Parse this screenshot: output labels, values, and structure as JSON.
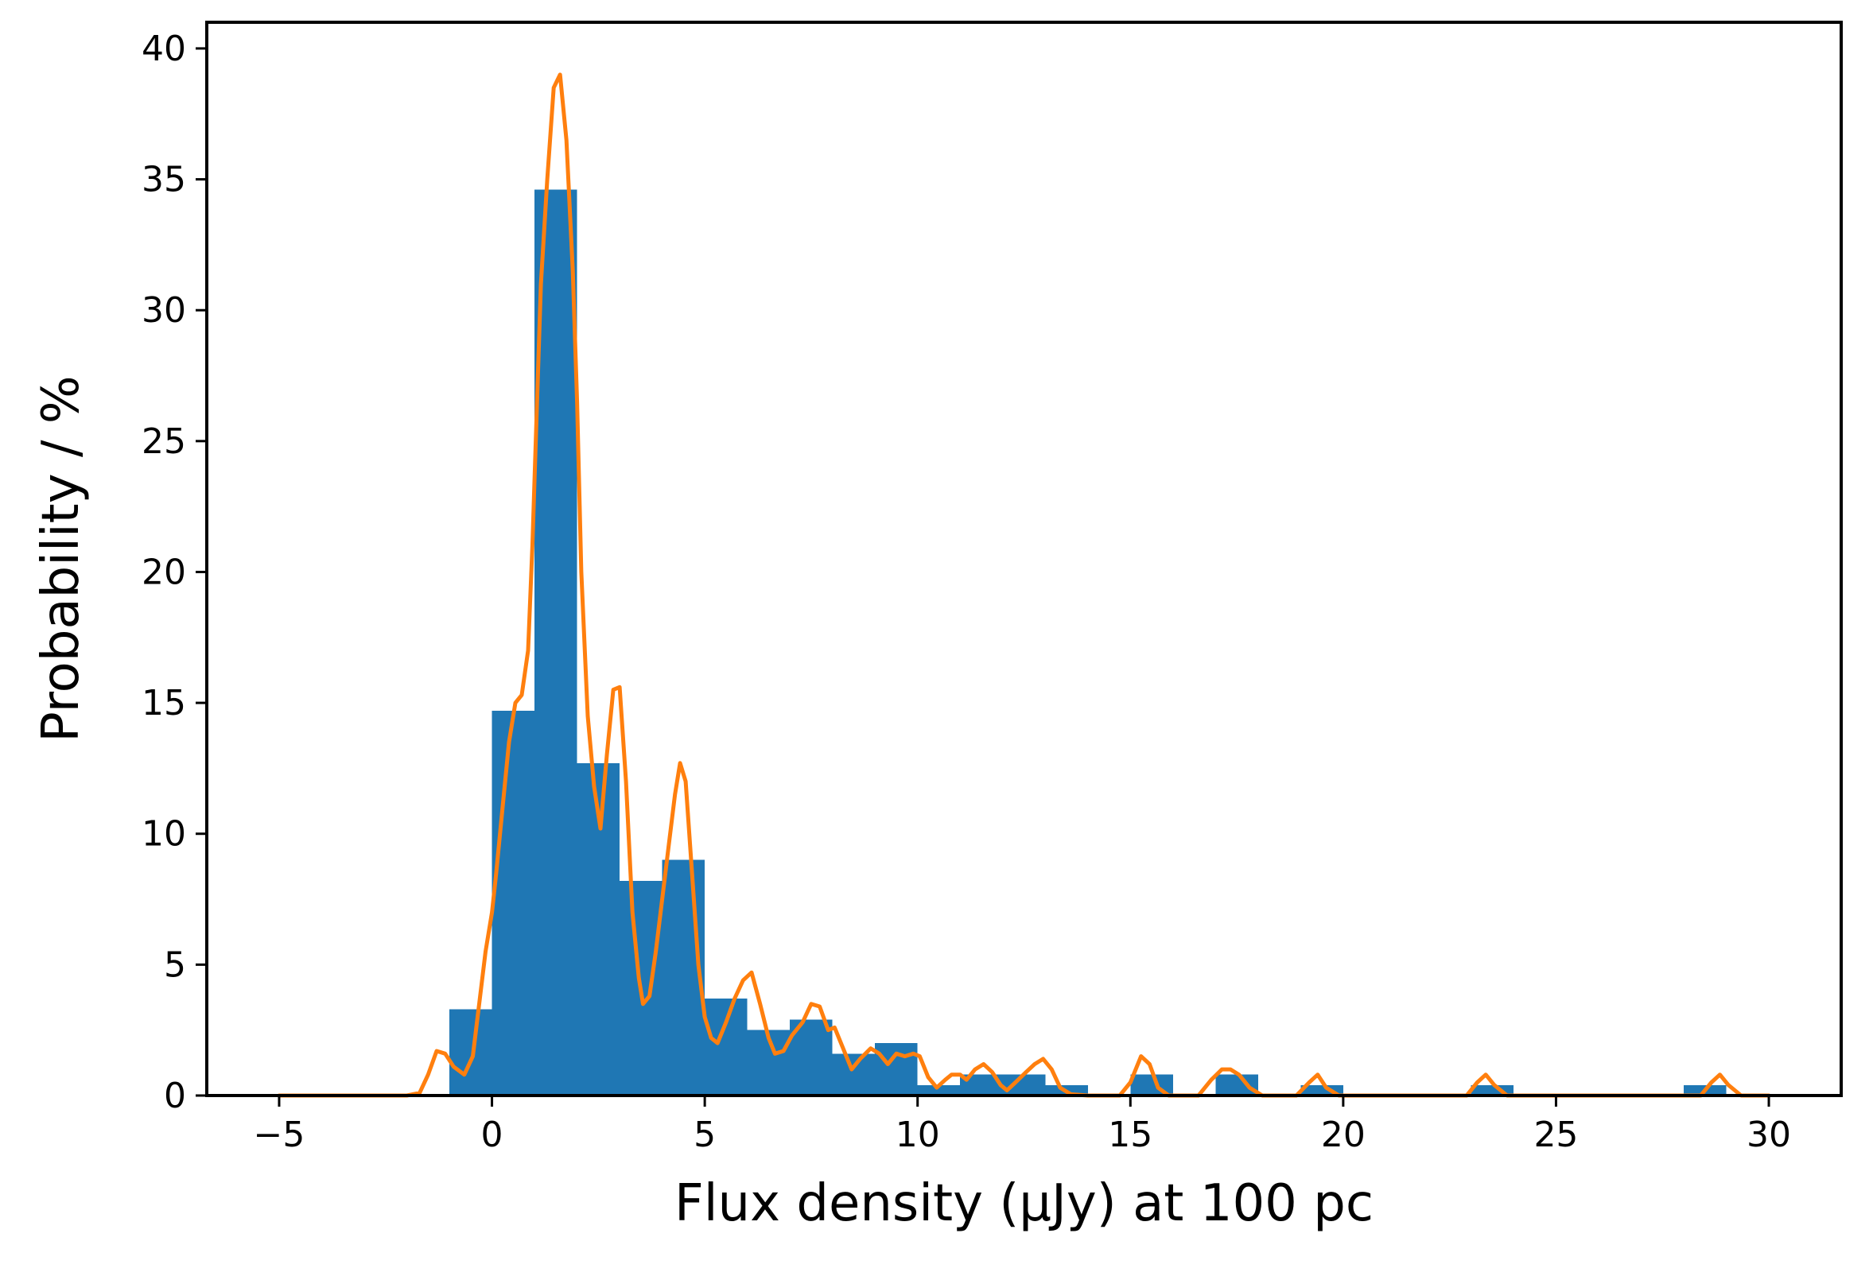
{
  "chart_data": {
    "type": "bar",
    "xlabel": "Flux density (μJy) at 100 pc",
    "ylabel": "Probability / %",
    "xlim": [
      -6.7,
      31.7
    ],
    "ylim": [
      0,
      41
    ],
    "xticks": [
      -5,
      0,
      5,
      10,
      15,
      20,
      25,
      30
    ],
    "yticks": [
      0,
      5,
      10,
      15,
      20,
      25,
      30,
      35,
      40
    ],
    "grid": false,
    "legend": "none",
    "colors": {
      "bars": "#1f77b4",
      "curve": "#ff7f0e"
    },
    "series": [
      {
        "kind": "histogram",
        "bin_width": 1,
        "bins": [
          {
            "x0": -1,
            "x1": 0,
            "value": 3.3
          },
          {
            "x0": 0,
            "x1": 1,
            "value": 14.7
          },
          {
            "x0": 1,
            "x1": 2,
            "value": 34.6
          },
          {
            "x0": 2,
            "x1": 3,
            "value": 12.7
          },
          {
            "x0": 3,
            "x1": 4,
            "value": 8.2
          },
          {
            "x0": 4,
            "x1": 5,
            "value": 9.0
          },
          {
            "x0": 5,
            "x1": 6,
            "value": 3.7
          },
          {
            "x0": 6,
            "x1": 7,
            "value": 2.5
          },
          {
            "x0": 7,
            "x1": 8,
            "value": 2.9
          },
          {
            "x0": 8,
            "x1": 9,
            "value": 1.6
          },
          {
            "x0": 9,
            "x1": 10,
            "value": 2.0
          },
          {
            "x0": 10,
            "x1": 11,
            "value": 0.4
          },
          {
            "x0": 11,
            "x1": 12,
            "value": 0.8
          },
          {
            "x0": 12,
            "x1": 13,
            "value": 0.8
          },
          {
            "x0": 13,
            "x1": 14,
            "value": 0.4
          },
          {
            "x0": 15,
            "x1": 16,
            "value": 0.8
          },
          {
            "x0": 17,
            "x1": 18,
            "value": 0.8
          },
          {
            "x0": 19,
            "x1": 20,
            "value": 0.4
          },
          {
            "x0": 23,
            "x1": 24,
            "value": 0.4
          },
          {
            "x0": 28,
            "x1": 29,
            "value": 0.4
          }
        ]
      },
      {
        "kind": "line",
        "points": [
          [
            -5,
            0
          ],
          [
            -2,
            0
          ],
          [
            -1.7,
            0.1
          ],
          [
            -1.5,
            0.8
          ],
          [
            -1.3,
            1.7
          ],
          [
            -1.1,
            1.6
          ],
          [
            -0.9,
            1.1
          ],
          [
            -0.65,
            0.8
          ],
          [
            -0.45,
            1.5
          ],
          [
            -0.3,
            3.5
          ],
          [
            -0.15,
            5.5
          ],
          [
            0,
            7.0
          ],
          [
            0.1,
            8.5
          ],
          [
            0.25,
            11.0
          ],
          [
            0.4,
            13.5
          ],
          [
            0.55,
            15.0
          ],
          [
            0.7,
            15.3
          ],
          [
            0.85,
            17.0
          ],
          [
            0.95,
            21.0
          ],
          [
            1.05,
            26.0
          ],
          [
            1.15,
            31.0
          ],
          [
            1.3,
            35.0
          ],
          [
            1.45,
            38.5
          ],
          [
            1.6,
            39.0
          ],
          [
            1.75,
            36.5
          ],
          [
            1.9,
            31.5
          ],
          [
            2.0,
            26.5
          ],
          [
            2.1,
            20.0
          ],
          [
            2.25,
            14.5
          ],
          [
            2.4,
            11.8
          ],
          [
            2.55,
            10.2
          ],
          [
            2.7,
            13.0
          ],
          [
            2.85,
            15.5
          ],
          [
            3.0,
            15.6
          ],
          [
            3.15,
            12.0
          ],
          [
            3.3,
            7.0
          ],
          [
            3.45,
            4.5
          ],
          [
            3.55,
            3.5
          ],
          [
            3.7,
            3.8
          ],
          [
            3.85,
            5.5
          ],
          [
            4.0,
            7.5
          ],
          [
            4.15,
            9.5
          ],
          [
            4.3,
            11.5
          ],
          [
            4.42,
            12.7
          ],
          [
            4.55,
            12.0
          ],
          [
            4.7,
            8.5
          ],
          [
            4.85,
            5.0
          ],
          [
            5.0,
            3.0
          ],
          [
            5.15,
            2.2
          ],
          [
            5.3,
            2.0
          ],
          [
            5.5,
            2.8
          ],
          [
            5.7,
            3.7
          ],
          [
            5.9,
            4.4
          ],
          [
            6.1,
            4.7
          ],
          [
            6.3,
            3.5
          ],
          [
            6.5,
            2.2
          ],
          [
            6.65,
            1.6
          ],
          [
            6.85,
            1.7
          ],
          [
            7.05,
            2.3
          ],
          [
            7.3,
            2.8
          ],
          [
            7.5,
            3.5
          ],
          [
            7.7,
            3.4
          ],
          [
            7.9,
            2.5
          ],
          [
            8.05,
            2.6
          ],
          [
            8.25,
            1.8
          ],
          [
            8.45,
            1.0
          ],
          [
            8.65,
            1.4
          ],
          [
            8.9,
            1.8
          ],
          [
            9.1,
            1.6
          ],
          [
            9.3,
            1.2
          ],
          [
            9.5,
            1.6
          ],
          [
            9.7,
            1.5
          ],
          [
            9.9,
            1.6
          ],
          [
            10.05,
            1.5
          ],
          [
            10.25,
            0.7
          ],
          [
            10.45,
            0.3
          ],
          [
            10.65,
            0.6
          ],
          [
            10.8,
            0.8
          ],
          [
            11.0,
            0.8
          ],
          [
            11.15,
            0.6
          ],
          [
            11.35,
            1.0
          ],
          [
            11.55,
            1.2
          ],
          [
            11.75,
            0.9
          ],
          [
            11.95,
            0.4
          ],
          [
            12.1,
            0.2
          ],
          [
            12.3,
            0.5
          ],
          [
            12.55,
            0.9
          ],
          [
            12.75,
            1.2
          ],
          [
            12.95,
            1.4
          ],
          [
            13.15,
            1.0
          ],
          [
            13.35,
            0.3
          ],
          [
            13.6,
            0.05
          ],
          [
            14.0,
            0
          ],
          [
            14.75,
            0
          ],
          [
            15.0,
            0.5
          ],
          [
            15.25,
            1.5
          ],
          [
            15.45,
            1.2
          ],
          [
            15.65,
            0.3
          ],
          [
            15.9,
            0
          ],
          [
            16.6,
            0
          ],
          [
            16.9,
            0.6
          ],
          [
            17.15,
            1.0
          ],
          [
            17.35,
            1.0
          ],
          [
            17.55,
            0.8
          ],
          [
            17.8,
            0.3
          ],
          [
            18.1,
            0
          ],
          [
            18.9,
            0
          ],
          [
            19.2,
            0.5
          ],
          [
            19.4,
            0.8
          ],
          [
            19.6,
            0.3
          ],
          [
            19.9,
            0
          ],
          [
            22.9,
            0
          ],
          [
            23.15,
            0.5
          ],
          [
            23.35,
            0.8
          ],
          [
            23.55,
            0.4
          ],
          [
            23.85,
            0
          ],
          [
            28.4,
            0
          ],
          [
            28.65,
            0.5
          ],
          [
            28.85,
            0.8
          ],
          [
            29.05,
            0.4
          ],
          [
            29.35,
            0
          ],
          [
            30,
            0
          ]
        ]
      }
    ]
  }
}
